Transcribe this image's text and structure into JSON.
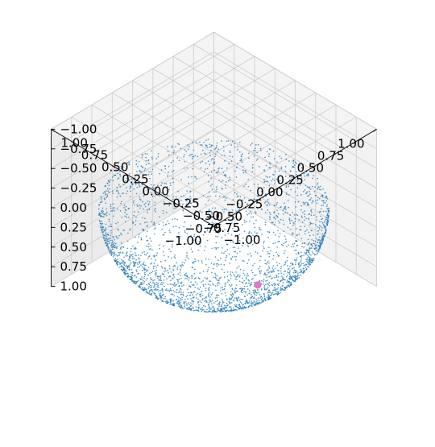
{
  "chart_data": {
    "type": "scatter",
    "title": "",
    "projection": "3d",
    "view": {
      "elev_deg": 40,
      "azim_deg": -135
    },
    "xlim": [
      -1.0,
      1.0
    ],
    "ylim": [
      -1.0,
      1.0
    ],
    "zlim": [
      -1.0,
      1.0
    ],
    "x_ticks": [
      "−1.00",
      "−0.75",
      "−0.50",
      "−0.25",
      "0.00",
      "0.25",
      "0.50",
      "0.75",
      "1.00"
    ],
    "y_ticks": [
      "−1.00",
      "−0.75",
      "−0.50",
      "−0.25",
      "0.00",
      "0.25",
      "0.50",
      "0.75",
      "1.00"
    ],
    "z_ticks": [
      "−1.00",
      "−0.75",
      "−0.50",
      "−0.25",
      "0.00",
      "0.25",
      "0.50",
      "0.75",
      "1.00"
    ],
    "grid": true,
    "series": [
      {
        "kind": "points_on_upper_hemisphere",
        "radius": 1.0,
        "z_range": [
          0.0,
          1.0
        ],
        "approx_count": 3000,
        "marker_size": "tiny",
        "color": "#1f77b4"
      },
      {
        "kind": "single_point",
        "x": 0.22,
        "y": -0.32,
        "z": 0.92,
        "marker_size": "large",
        "color": "#e377c2"
      }
    ],
    "pane_color": "#f2f2f2",
    "grid_color": "#cccccc"
  }
}
